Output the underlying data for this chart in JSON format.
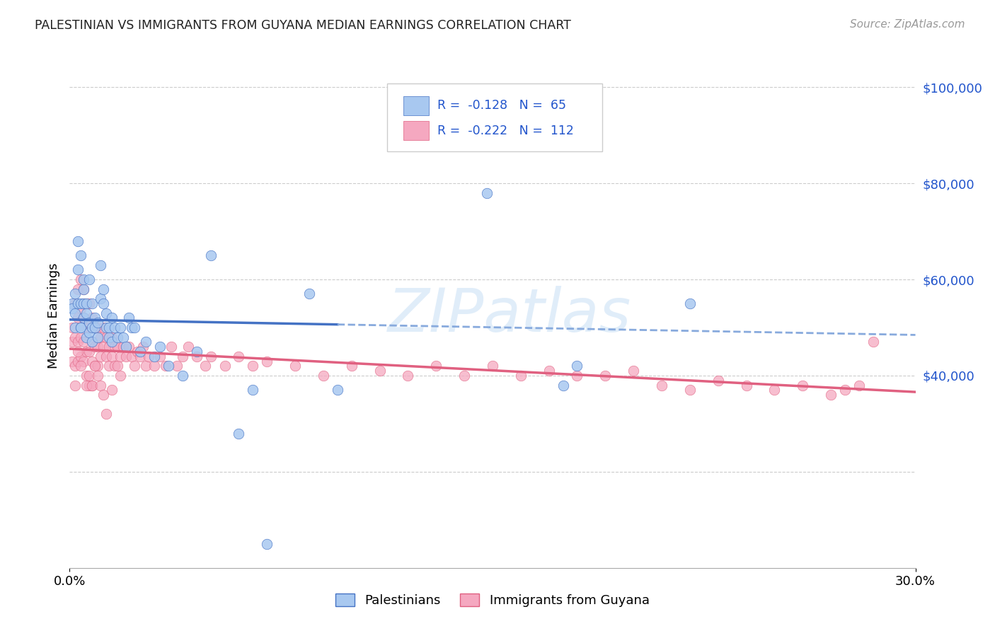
{
  "title": "PALESTINIAN VS IMMIGRANTS FROM GUYANA MEDIAN EARNINGS CORRELATION CHART",
  "source": "Source: ZipAtlas.com",
  "ylabel": "Median Earnings",
  "legend_label1": "Palestinians",
  "legend_label2": "Immigrants from Guyana",
  "r1": "-0.128",
  "n1": "65",
  "r2": "-0.222",
  "n2": "112",
  "color_blue": "#A8C8F0",
  "color_pink": "#F5A8C0",
  "color_blue_line": "#4472C4",
  "color_pink_line": "#E06080",
  "color_blue_text": "#2255CC",
  "color_dashed": "#88AACС",
  "ymin": 0,
  "ymax": 105000,
  "xmin": 0.0,
  "xmax": 0.3,
  "watermark_text": "ZIPatlas",
  "ytick_vals": [
    40000,
    60000,
    80000,
    100000
  ],
  "ytick_labels": [
    "$40,000",
    "$60,000",
    "$80,000",
    "$100,000"
  ],
  "pal_x": [
    0.001,
    0.001,
    0.002,
    0.002,
    0.002,
    0.003,
    0.003,
    0.003,
    0.004,
    0.004,
    0.004,
    0.004,
    0.005,
    0.005,
    0.005,
    0.005,
    0.006,
    0.006,
    0.006,
    0.007,
    0.007,
    0.007,
    0.008,
    0.008,
    0.008,
    0.009,
    0.009,
    0.01,
    0.01,
    0.011,
    0.011,
    0.012,
    0.012,
    0.013,
    0.013,
    0.014,
    0.014,
    0.015,
    0.015,
    0.016,
    0.017,
    0.018,
    0.019,
    0.02,
    0.021,
    0.022,
    0.023,
    0.025,
    0.027,
    0.03,
    0.032,
    0.035,
    0.04,
    0.045,
    0.05,
    0.06,
    0.065,
    0.07,
    0.085,
    0.095,
    0.13,
    0.148,
    0.175,
    0.18,
    0.22
  ],
  "pal_y": [
    55000,
    54000,
    57000,
    50000,
    53000,
    68000,
    62000,
    55000,
    50000,
    65000,
    55000,
    50000,
    58000,
    60000,
    52000,
    55000,
    55000,
    48000,
    53000,
    49000,
    51000,
    60000,
    50000,
    47000,
    55000,
    52000,
    50000,
    48000,
    51000,
    63000,
    56000,
    55000,
    58000,
    53000,
    50000,
    50000,
    48000,
    47000,
    52000,
    50000,
    48000,
    50000,
    48000,
    46000,
    52000,
    50000,
    50000,
    45000,
    47000,
    44000,
    46000,
    42000,
    40000,
    45000,
    65000,
    28000,
    37000,
    5000,
    57000,
    37000,
    91000,
    78000,
    38000,
    42000,
    55000
  ],
  "guy_x": [
    0.001,
    0.001,
    0.001,
    0.002,
    0.002,
    0.002,
    0.003,
    0.003,
    0.003,
    0.003,
    0.004,
    0.004,
    0.004,
    0.004,
    0.005,
    0.005,
    0.005,
    0.005,
    0.006,
    0.006,
    0.006,
    0.006,
    0.007,
    0.007,
    0.007,
    0.007,
    0.008,
    0.008,
    0.008,
    0.008,
    0.009,
    0.009,
    0.009,
    0.01,
    0.01,
    0.01,
    0.011,
    0.011,
    0.012,
    0.012,
    0.013,
    0.013,
    0.014,
    0.014,
    0.015,
    0.015,
    0.016,
    0.016,
    0.017,
    0.017,
    0.018,
    0.018,
    0.019,
    0.02,
    0.021,
    0.022,
    0.023,
    0.024,
    0.025,
    0.026,
    0.027,
    0.028,
    0.03,
    0.032,
    0.034,
    0.036,
    0.038,
    0.04,
    0.042,
    0.045,
    0.048,
    0.05,
    0.055,
    0.06,
    0.065,
    0.07,
    0.08,
    0.09,
    0.1,
    0.11,
    0.12,
    0.13,
    0.14,
    0.15,
    0.16,
    0.17,
    0.18,
    0.19,
    0.2,
    0.21,
    0.22,
    0.23,
    0.24,
    0.25,
    0.26,
    0.27,
    0.275,
    0.28,
    0.285,
    0.005,
    0.003,
    0.002,
    0.004,
    0.006,
    0.007,
    0.008,
    0.009,
    0.01,
    0.011,
    0.012,
    0.013,
    0.015
  ],
  "guy_y": [
    50000,
    47000,
    43000,
    55000,
    48000,
    42000,
    58000,
    52000,
    47000,
    43000,
    60000,
    54000,
    48000,
    44000,
    58000,
    52000,
    47000,
    43000,
    55000,
    50000,
    45000,
    40000,
    55000,
    50000,
    45000,
    38000,
    52000,
    47000,
    43000,
    38000,
    50000,
    46000,
    42000,
    50000,
    46000,
    42000,
    48000,
    44000,
    50000,
    46000,
    48000,
    44000,
    46000,
    42000,
    48000,
    44000,
    46000,
    42000,
    46000,
    42000,
    44000,
    40000,
    46000,
    44000,
    46000,
    44000,
    42000,
    45000,
    44000,
    46000,
    42000,
    44000,
    42000,
    44000,
    42000,
    46000,
    42000,
    44000,
    46000,
    44000,
    42000,
    44000,
    42000,
    44000,
    42000,
    43000,
    42000,
    40000,
    42000,
    41000,
    40000,
    42000,
    40000,
    42000,
    40000,
    41000,
    40000,
    40000,
    41000,
    38000,
    37000,
    39000,
    38000,
    37000,
    38000,
    36000,
    37000,
    38000,
    47000,
    55000,
    45000,
    38000,
    42000,
    38000,
    40000,
    38000,
    42000,
    40000,
    38000,
    36000,
    32000,
    37000
  ]
}
